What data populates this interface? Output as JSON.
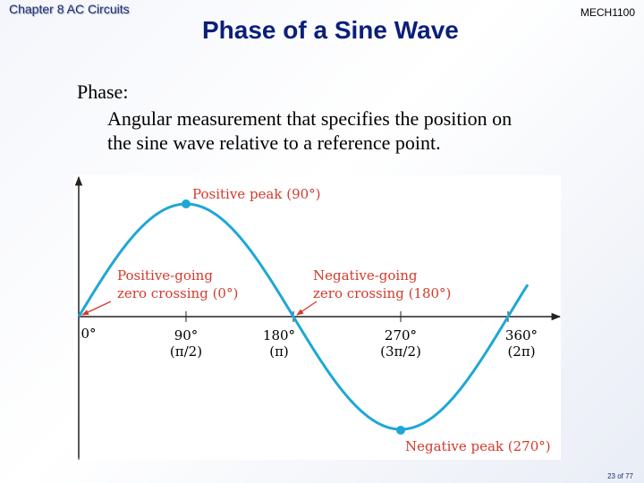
{
  "header": {
    "chapter": "Chapter 8 AC Circuits",
    "title": "Phase of a Sine Wave",
    "course": "MECH1100"
  },
  "body": {
    "term": "Phase:",
    "definition": [
      "Angular measurement that specifies the position on",
      "the sine wave relative to a reference point."
    ]
  },
  "figure": {
    "positive_peak": "Positive peak (90°)",
    "negative_peak": "Negative peak (270°)",
    "positive_crossing": [
      "Positive-going",
      "zero crossing (0°)"
    ],
    "negative_crossing": [
      "Negative-going",
      "zero crossing (180°)"
    ],
    "axis_labels": [
      {
        "degrees": "0°"
      },
      {
        "degrees": "90°",
        "radians": "(π/2)"
      },
      {
        "degrees": "180°",
        "radians": "(π)"
      },
      {
        "degrees": "270°",
        "radians": "(3π/2)"
      },
      {
        "degrees": "360°",
        "radians": "(2π)"
      }
    ]
  },
  "footer": {
    "page": "23 of 77"
  }
}
